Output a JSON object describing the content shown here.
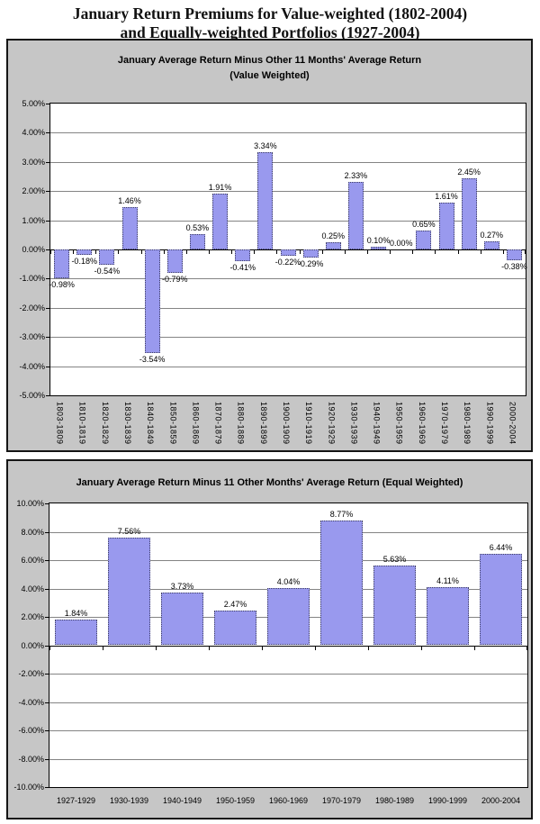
{
  "page": {
    "title_line1": "January Return Premiums for Value-weighted (1802-2004)",
    "title_line2": "and Equally-weighted Portfolios (1927-2004)"
  },
  "chart_data": [
    {
      "type": "bar",
      "title_line1": "January Average Return Minus Other 11 Months' Average Return",
      "title_line2": "(Value Weighted)",
      "categories": [
        "1803-1809",
        "1810-1819",
        "1820-1829",
        "1830-1839",
        "1840-1849",
        "1850-1859",
        "1860-1869",
        "1870-1879",
        "1880-1889",
        "1890-1899",
        "1900-1909",
        "1910-1919",
        "1920-1929",
        "1930-1939",
        "1940-1949",
        "1950-1959",
        "1960-1969",
        "1970-1979",
        "1980-1989",
        "1990-1999",
        "2000-2004"
      ],
      "values": [
        -0.98,
        -0.18,
        -0.54,
        1.46,
        -3.54,
        -0.79,
        0.53,
        1.91,
        -0.41,
        3.34,
        -0.22,
        -0.29,
        0.25,
        2.33,
        0.1,
        0.0,
        0.65,
        1.61,
        2.45,
        0.27,
        -0.38
      ],
      "labels": [
        "-0.98%",
        "-0.18%",
        "-0.54%",
        "1.46%",
        "-3.54%",
        "-0.79%",
        "0.53%",
        "1.91%",
        "-0.41%",
        "3.34%",
        "-0.22%",
        "-0.29%",
        "0.25%",
        "2.33%",
        "0.10%",
        "0.00%",
        "0.65%",
        "1.61%",
        "2.45%",
        "0.27%",
        "-0.38%"
      ],
      "ylim": [
        -5,
        5
      ],
      "yticks": [
        "5.00%",
        "4.00%",
        "3.00%",
        "2.00%",
        "1.00%",
        "0.00%",
        "-1.00%",
        "-2.00%",
        "-3.00%",
        "-4.00%",
        "-5.00%"
      ],
      "grid": true,
      "legend": "none",
      "bar_color": "#9999ee",
      "plot_bg": "#ffffff",
      "chart_bg": "#c6c6c6"
    },
    {
      "type": "bar",
      "title_line1": "January Average Return Minus 11 Other Months' Average Return (Equal Weighted)",
      "title_line2": "",
      "categories": [
        "1927-1929",
        "1930-1939",
        "1940-1949",
        "1950-1959",
        "1960-1969",
        "1970-1979",
        "1980-1989",
        "1990-1999",
        "2000-2004"
      ],
      "values": [
        1.84,
        7.56,
        3.73,
        2.47,
        4.04,
        8.77,
        5.63,
        4.11,
        6.44
      ],
      "labels": [
        "1.84%",
        "7.56%",
        "3.73%",
        "2.47%",
        "4.04%",
        "8.77%",
        "5.63%",
        "4.11%",
        "6.44%"
      ],
      "ylim": [
        -10,
        10
      ],
      "yticks": [
        "10.00%",
        "8.00%",
        "6.00%",
        "4.00%",
        "2.00%",
        "0.00%",
        "-2.00%",
        "-4.00%",
        "-6.00%",
        "-8.00%",
        "-10.00%"
      ],
      "grid": true,
      "legend": "none",
      "bar_color": "#9999ee",
      "plot_bg": "#ffffff",
      "chart_bg": "#c6c6c6"
    }
  ]
}
